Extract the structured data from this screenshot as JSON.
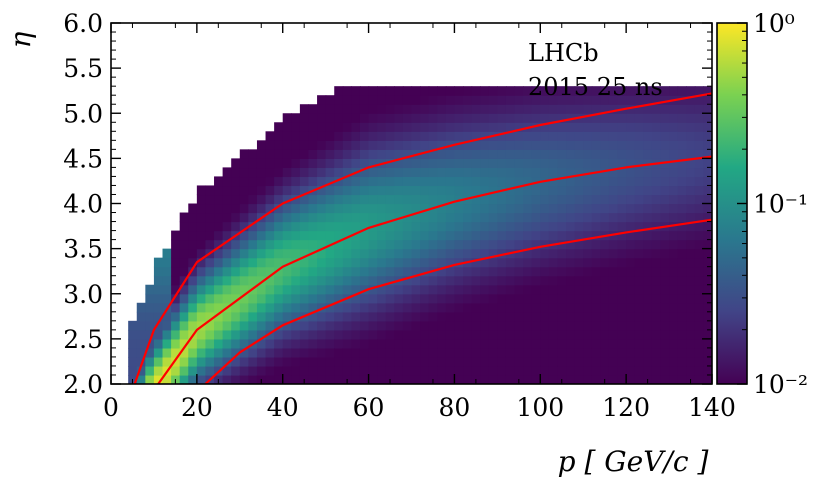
{
  "chart_data": {
    "type": "heatmap",
    "title": "",
    "annotation": [
      "LHCb",
      "2015 25 ns"
    ],
    "xlabel": "p [ GeV/c ]",
    "ylabel": "η",
    "xlim": [
      0,
      140
    ],
    "ylim": [
      2.0,
      6.0
    ],
    "x_ticks": [
      0,
      20,
      40,
      60,
      80,
      100,
      120,
      140
    ],
    "x_tick_labels": [
      "0",
      "20",
      "40",
      "60",
      "80",
      "100",
      "120",
      "140"
    ],
    "y_ticks": [
      2.0,
      2.5,
      3.0,
      3.5,
      4.0,
      4.5,
      5.0,
      5.5,
      6.0
    ],
    "y_tick_labels": [
      "2.0",
      "2.5",
      "3.0",
      "3.5",
      "4.0",
      "4.5",
      "5.0",
      "5.5",
      "6.0"
    ],
    "colorbar": {
      "scale": "log",
      "range": [
        0.01,
        1
      ],
      "ticks": [
        0.01,
        0.1,
        1
      ],
      "tick_labels": [
        "10⁻²",
        "10⁻¹",
        "10⁰"
      ],
      "colormap": [
        "#440154",
        "#414487",
        "#2a788e",
        "#22a884",
        "#7ad151",
        "#fde725"
      ]
    },
    "density_ridge": {
      "description": "maximum density follows the middle fiducial curve",
      "peak_p": 12,
      "peak_eta": 2.5
    },
    "fiducial_curves": {
      "color": "#ff0000",
      "lines": [
        {
          "name": "upper",
          "points": [
            [
              5.5,
              2.0
            ],
            [
              10,
              2.6
            ],
            [
              20,
              3.35
            ],
            [
              40,
              4.0
            ],
            [
              60,
              4.4
            ],
            [
              80,
              4.65
            ],
            [
              100,
              4.87
            ],
            [
              120,
              5.05
            ],
            [
              140,
              5.22
            ]
          ]
        },
        {
          "name": "middle",
          "points": [
            [
              11,
              2.0
            ],
            [
              20,
              2.6
            ],
            [
              40,
              3.3
            ],
            [
              60,
              3.73
            ],
            [
              80,
              4.02
            ],
            [
              100,
              4.24
            ],
            [
              120,
              4.4
            ],
            [
              140,
              4.52
            ]
          ]
        },
        {
          "name": "lower",
          "points": [
            [
              22,
              2.0
            ],
            [
              30,
              2.35
            ],
            [
              40,
              2.65
            ],
            [
              60,
              3.05
            ],
            [
              80,
              3.32
            ],
            [
              100,
              3.52
            ],
            [
              120,
              3.68
            ],
            [
              140,
              3.82
            ]
          ]
        }
      ]
    }
  }
}
